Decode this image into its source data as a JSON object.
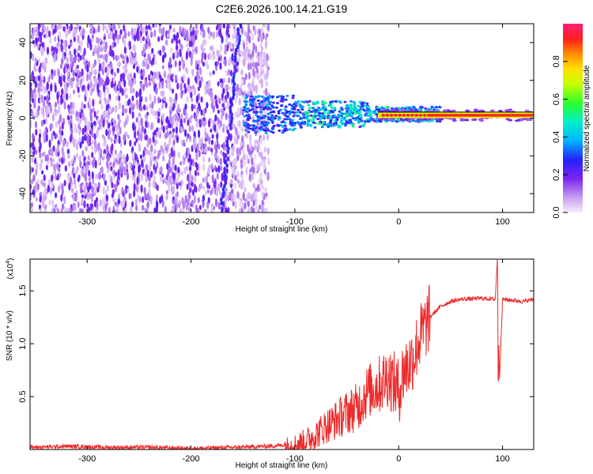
{
  "title": "C2E6.2026.100.14.21.G19",
  "colors": {
    "snr_line": "#ee2a2a",
    "axis": "#000000",
    "background": "#ffffff"
  },
  "chart_data": [
    {
      "type": "heatmap",
      "id": "spectrogram",
      "xlabel": "Height of straight line (km)",
      "ylabel": "Frequency (Hz)",
      "xlim": [
        -355,
        130
      ],
      "ylim": [
        -50,
        50
      ],
      "xticks": [
        -300,
        -200,
        -100,
        0,
        100
      ],
      "yticks": [
        -40,
        -20,
        0,
        20,
        40
      ],
      "colorbar": {
        "label": "Normalized spectral amplitude",
        "range": [
          0.0,
          1.0
        ],
        "ticks": [
          "0.0",
          "0.2",
          "0.4",
          "0.6",
          "0.8"
        ],
        "colormap": "rainbow"
      },
      "description_regions": [
        {
          "x": [
            -355,
            -140
          ],
          "y": [
            -50,
            50
          ],
          "level": 0.1
        },
        {
          "x": [
            -140,
            40
          ],
          "y": [
            -7,
            10
          ],
          "level": 0.4
        },
        {
          "x": [
            -20,
            130
          ],
          "y": [
            0,
            3
          ],
          "level": 0.95
        }
      ]
    },
    {
      "type": "line",
      "id": "snr",
      "xlabel": "Height of straight line (km)",
      "ylabel": "SNR (10 * v/v)",
      "exponent_label": "(x10",
      "exponent_power": "4",
      "exponent_close": ")",
      "xlim": [
        -355,
        130
      ],
      "ylim": [
        0,
        1.8
      ],
      "xticks": [
        -300,
        -200,
        -100,
        0,
        100
      ],
      "yticks": [
        "0.5",
        "1.0",
        "1.5"
      ],
      "ytick_values": [
        0.5,
        1.0,
        1.5
      ],
      "series": [
        {
          "x": [
            -355,
            -320,
            -280,
            -240,
            -200,
            -160,
            -130,
            -110,
            -100,
            -90,
            -80,
            -70,
            -60,
            -50,
            -40,
            -30,
            -20,
            -10,
            0,
            5,
            10,
            15,
            20,
            30,
            40,
            50,
            60,
            80,
            93,
            95,
            97,
            100,
            110,
            120,
            130
          ],
          "values": [
            0.02,
            0.03,
            0.02,
            0.02,
            0.01,
            0.02,
            0.03,
            0.04,
            0.05,
            0.08,
            0.14,
            0.22,
            0.28,
            0.35,
            0.4,
            0.55,
            0.6,
            0.7,
            0.55,
            0.75,
            0.8,
            0.9,
            1.05,
            1.25,
            1.35,
            1.4,
            1.42,
            1.43,
            1.42,
            1.8,
            0.65,
            1.42,
            1.41,
            1.4,
            1.42
          ]
        }
      ]
    }
  ]
}
